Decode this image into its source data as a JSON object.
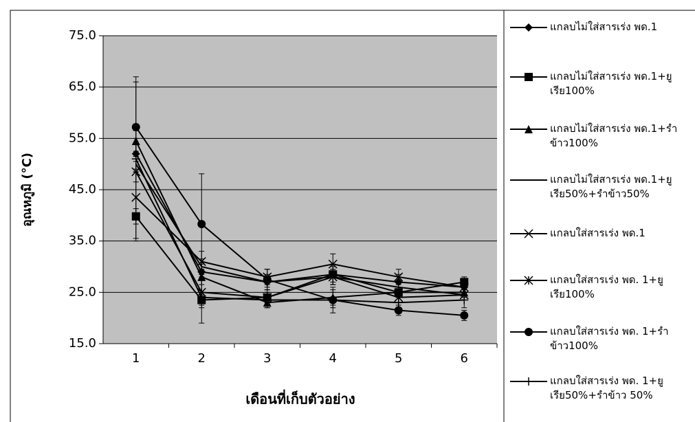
{
  "chart_data": {
    "type": "line",
    "y_label": "อุณหภูมิ (°C)",
    "x_label": "เดือนที่เก็บตัวอย่าง",
    "categories": [
      "1",
      "2",
      "3",
      "4",
      "5",
      "6"
    ],
    "ylim": [
      15,
      75
    ],
    "yticks": [
      {
        "value": 15,
        "label": "15.0"
      },
      {
        "value": 25,
        "label": "25.0"
      },
      {
        "value": 35,
        "label": "35.0"
      },
      {
        "value": 45,
        "label": "45.0"
      },
      {
        "value": 55,
        "label": "55.0"
      },
      {
        "value": 65,
        "label": "65.0"
      },
      {
        "value": 75,
        "label": "75.0"
      }
    ],
    "grid": true,
    "series": [
      {
        "name": "แกลบไม่ใส่สารเร่ง พด.1",
        "color": "#000000",
        "marker": "diamond",
        "values": [
          52,
          29,
          27,
          28.5,
          27,
          26
        ],
        "errors": [
          3,
          1.5,
          1.5,
          2,
          1.5,
          1
        ]
      },
      {
        "name": "แกลบไม่ใส่สารเร่ง พด.1+ยูเรีย100%",
        "color": "#000000",
        "marker": "square",
        "values": [
          39.8,
          23.5,
          24,
          28.5,
          25,
          27
        ],
        "errors": [
          1.5,
          1,
          1,
          1.5,
          1,
          1
        ]
      },
      {
        "name": "แกลบไม่ใส่สารเร่ง พด.1+รำข้าว100%",
        "color": "#000000",
        "marker": "triangle",
        "values": [
          54.5,
          28,
          23,
          24,
          25,
          25
        ],
        "errors": [
          2,
          1.5,
          1,
          1.5,
          1,
          1
        ]
      },
      {
        "name": "แกลบไม่ใส่สารเร่ง พด.1+ยูเรีย50%+รำข้าว50%",
        "color": "#000000",
        "marker": "none",
        "values": [
          50,
          30,
          27,
          28,
          26,
          24.5
        ],
        "errors": [
          1.5,
          1.5,
          1,
          1.5,
          1,
          1
        ]
      },
      {
        "name": "แกลบใส่สารเร่ง พด.1",
        "color": "#000000",
        "marker": "x",
        "values": [
          43.5,
          31,
          28,
          30.5,
          28,
          26
        ],
        "errors": [
          8,
          2,
          1.5,
          2,
          1.5,
          1
        ]
      },
      {
        "name": "แกลบใส่สารเร่ง พด. 1+ยูเรีย100%",
        "color": "#000000",
        "marker": "star",
        "values": [
          48.5,
          25,
          24,
          28,
          24,
          24.5
        ],
        "errors": [
          2,
          3,
          1.5,
          1.5,
          1,
          1
        ]
      },
      {
        "name": "แกลบใส่สารเร่ง พด. 1+รำข้าว100%",
        "color": "#000000",
        "marker": "circle",
        "values": [
          57.2,
          38.3,
          27.5,
          23.5,
          21.5,
          20.5
        ],
        "errors": [
          8.8,
          9.8,
          2,
          1.5,
          1,
          1
        ]
      },
      {
        "name": "แกลบใส่สารเร่ง พด. 1+ยูเรีย50%+รำข้าว 50%",
        "color": "#000000",
        "marker": "plus",
        "values": [
          51,
          24,
          23.5,
          23.5,
          23,
          23.5
        ],
        "errors": [
          16,
          5,
          1.5,
          2.5,
          1.5,
          1.5
        ]
      }
    ]
  }
}
